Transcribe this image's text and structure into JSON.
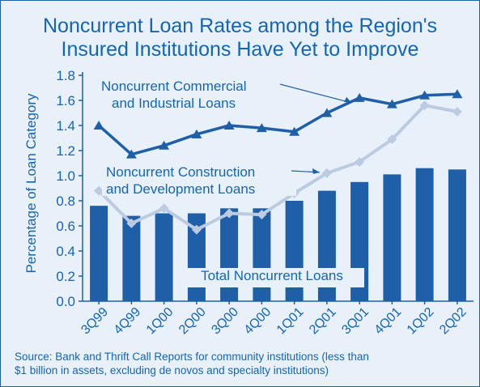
{
  "chart_data": {
    "type": "bar",
    "title_lines": [
      "Noncurrent Loan Rates among the Region's",
      "Insured Institutions Have Yet to Improve"
    ],
    "ylabel": "Percentage of Loan Category",
    "xlabel": "",
    "ylim": [
      0.0,
      1.8
    ],
    "yticks": [
      "0.0",
      "0.2",
      "0.4",
      "0.6",
      "0.8",
      "1.0",
      "1.2",
      "1.4",
      "1.6",
      "1.8"
    ],
    "categories": [
      "3Q99",
      "4Q99",
      "1Q00",
      "2Q00",
      "3Q00",
      "4Q00",
      "1Q01",
      "2Q01",
      "3Q01",
      "4Q01",
      "1Q02",
      "2Q02"
    ],
    "grid": false,
    "series": [
      {
        "name": "Total Noncurrent Loans",
        "type": "bar",
        "color": "#1f5fa8",
        "values": [
          0.76,
          0.68,
          0.7,
          0.7,
          0.74,
          0.74,
          0.8,
          0.88,
          0.95,
          1.01,
          1.06,
          1.05
        ]
      },
      {
        "name": "Noncurrent Commercial and Industrial Loans",
        "label_lines": [
          "Noncurrent Commercial",
          "and Industrial Loans"
        ],
        "type": "line",
        "marker": "triangle",
        "color": "#1f5fa8",
        "values": [
          1.4,
          1.17,
          1.24,
          1.33,
          1.4,
          1.38,
          1.35,
          1.5,
          1.62,
          1.57,
          1.64,
          1.65
        ]
      },
      {
        "name": "Noncurrent Construction and Development Loans",
        "label_lines": [
          "Noncurrent Construction",
          "and Development  Loans"
        ],
        "type": "line",
        "marker": "diamond",
        "color": "#bccbe2",
        "values": [
          0.88,
          0.62,
          0.74,
          0.57,
          0.7,
          0.69,
          0.86,
          1.02,
          1.11,
          1.29,
          1.56,
          1.51
        ]
      }
    ],
    "source_lines": [
      "Source: Bank and Thrift Call Reports for community institutions (less than",
      "$1 billion in assets, excluding de novos and specialty institutions)"
    ]
  }
}
